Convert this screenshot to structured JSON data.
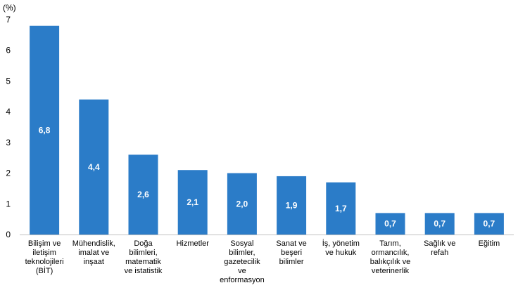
{
  "chart_data": {
    "type": "bar",
    "title": "",
    "unit_label": "(%)",
    "xlabel": "",
    "ylabel": "",
    "ylim": [
      0,
      7
    ],
    "yticks": [
      "0",
      "1",
      "2",
      "3",
      "4",
      "5",
      "6",
      "7"
    ],
    "grid": false,
    "legend": "none",
    "bar_color": "#2B7CC8",
    "categories": [
      [
        "Bilişim ve",
        "iletişim",
        "teknolojileri",
        "(BİT)"
      ],
      [
        "Mühendislik,",
        "imalat ve",
        "inşaat"
      ],
      [
        "Doğa",
        "bilimleri,",
        "matematik",
        "ve istatistik"
      ],
      [
        "Hizmetler"
      ],
      [
        "Sosyal",
        "bilimler,",
        "gazetecilik",
        "ve",
        "enformasyon"
      ],
      [
        "Sanat ve",
        "beşeri",
        "bilimler"
      ],
      [
        "İş, yönetim",
        "ve hukuk"
      ],
      [
        "Tarım,",
        "ormancılık,",
        "balıkçılık ve",
        "veterinerlik"
      ],
      [
        "Sağlık ve",
        "refah"
      ],
      [
        "Eğitim"
      ]
    ],
    "values": [
      6.8,
      4.4,
      2.6,
      2.1,
      2.0,
      1.9,
      1.7,
      0.7,
      0.7,
      0.7
    ],
    "data_labels": [
      "6,8",
      "4,4",
      "2,6",
      "2,1",
      "2,0",
      "1,9",
      "1,7",
      "0,7",
      "0,7",
      "0,7"
    ]
  }
}
